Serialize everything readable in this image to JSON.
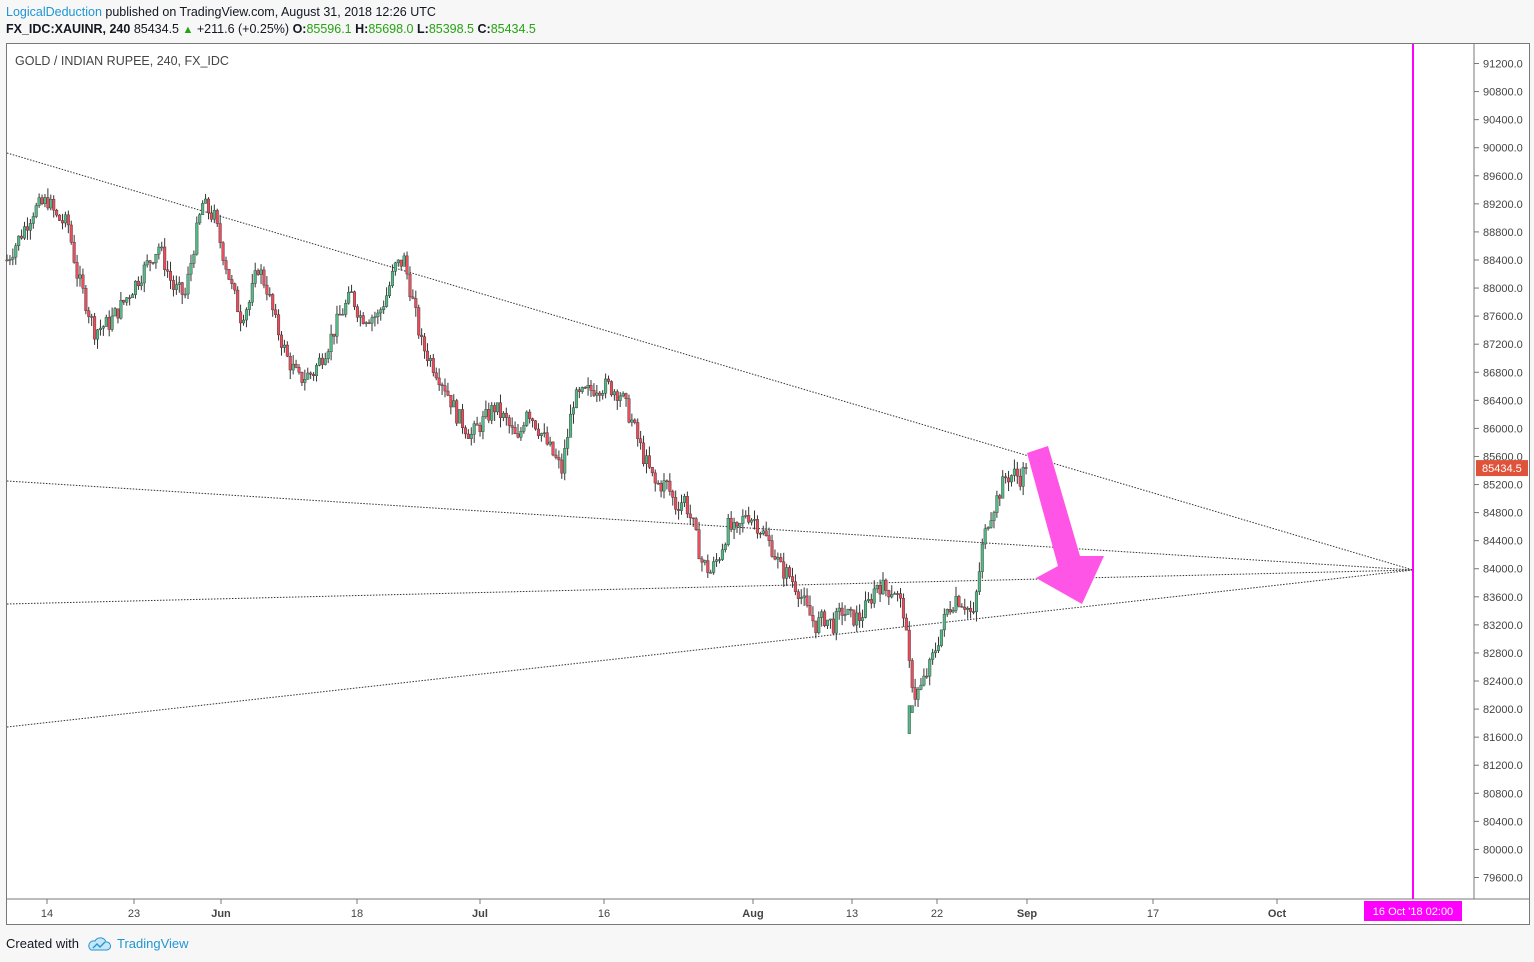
{
  "header": {
    "author": "LogicalDeduction",
    "published_text": " published on TradingView.com, August 31, 2018 12:26 UTC",
    "symbol": "FX_IDC:XAUINR, 240",
    "last": "85434.5",
    "change": "+211.6 (+0.25%)",
    "o_label": "O:",
    "o": "85596.1",
    "h_label": "H:",
    "h": "85698.0",
    "l_label": "L:",
    "l": "85398.5",
    "c_label": "C:",
    "c": "85434.5"
  },
  "footer": {
    "created_with": "Created with",
    "brand": "TradingView"
  },
  "colors": {
    "up": "#53b987",
    "down": "#eb4d5c",
    "wick": "#333333",
    "accent": "#ff00ff",
    "price_tag": "#e0533b",
    "arrow": "#ff55e6"
  },
  "chart_data": {
    "type": "candlestick",
    "title": "GOLD / INDIAN RUPEE, 240, FX_IDC",
    "ylim": [
      79200,
      91600
    ],
    "y_ticks": [
      "91200.0",
      "90800.0",
      "90400.0",
      "90000.0",
      "89600.0",
      "89200.0",
      "88800.0",
      "88400.0",
      "88000.0",
      "87600.0",
      "87200.0",
      "86800.0",
      "86400.0",
      "86000.0",
      "85600.0",
      "85200.0",
      "84800.0",
      "84400.0",
      "84000.0",
      "83600.0",
      "83200.0",
      "82800.0",
      "82400.0",
      "82000.0",
      "81600.0",
      "81200.0",
      "80800.0",
      "80400.0",
      "80000.0",
      "79600.0"
    ],
    "x_ticks": [
      "14",
      "23",
      "Jun",
      "18",
      "Jul",
      "16",
      "Aug",
      "13",
      "22",
      "Sep",
      "17",
      "Oct"
    ],
    "x_ticks_bold": [
      "Jun",
      "Jul",
      "Aug",
      "Sep",
      "Oct"
    ],
    "last_price_label": "85434.5",
    "vertical_marker_label": "16 Oct '18   02:00",
    "annotation": "downward arrow from last candle toward apex",
    "trendlines": [
      {
        "from": [
          "May 10",
          89950
        ],
        "to": [
          "Oct 16",
          84000
        ]
      },
      {
        "from": [
          "May 10",
          85250
        ],
        "to": [
          "Oct 16",
          84000
        ]
      },
      {
        "from": [
          "May 10",
          83500
        ],
        "to": [
          "Oct 16",
          84000
        ]
      },
      {
        "from": [
          "May 10",
          81750
        ],
        "to": [
          "Oct 16",
          84000
        ]
      }
    ],
    "price_path": [
      [
        0,
        88400
      ],
      [
        4,
        88700
      ],
      [
        9,
        89100
      ],
      [
        14,
        89250
      ],
      [
        17,
        89000
      ],
      [
        21,
        88900
      ],
      [
        24,
        88200
      ],
      [
        27,
        87800
      ],
      [
        30,
        87400
      ],
      [
        35,
        87500
      ],
      [
        40,
        87800
      ],
      [
        46,
        88200
      ],
      [
        52,
        88600
      ],
      [
        57,
        88000
      ],
      [
        61,
        87900
      ],
      [
        64,
        88600
      ],
      [
        67,
        89200
      ],
      [
        71,
        89000
      ],
      [
        74,
        88500
      ],
      [
        77,
        88000
      ],
      [
        80,
        87600
      ],
      [
        83,
        87800
      ],
      [
        86,
        88300
      ],
      [
        89,
        88000
      ],
      [
        92,
        87500
      ],
      [
        96,
        87000
      ],
      [
        100,
        86700
      ],
      [
        105,
        86800
      ],
      [
        110,
        87200
      ],
      [
        114,
        87600
      ],
      [
        118,
        87900
      ],
      [
        121,
        87600
      ],
      [
        124,
        87600
      ],
      [
        127,
        87600
      ],
      [
        130,
        87900
      ],
      [
        133,
        88300
      ],
      [
        136,
        88400
      ],
      [
        139,
        87800
      ],
      [
        142,
        87200
      ],
      [
        146,
        86900
      ],
      [
        150,
        86600
      ],
      [
        154,
        86200
      ],
      [
        159,
        85900
      ],
      [
        163,
        86100
      ],
      [
        167,
        86300
      ],
      [
        171,
        86100
      ],
      [
        175,
        85800
      ],
      [
        178,
        86300
      ],
      [
        182,
        86000
      ],
      [
        186,
        85700
      ],
      [
        190,
        85400
      ],
      [
        194,
        86400
      ],
      [
        198,
        86500
      ],
      [
        202,
        86600
      ],
      [
        206,
        86600
      ],
      [
        210,
        86500
      ],
      [
        214,
        86100
      ],
      [
        218,
        85600
      ],
      [
        222,
        85200
      ],
      [
        226,
        85200
      ],
      [
        229,
        84900
      ],
      [
        232,
        85000
      ],
      [
        235,
        84600
      ],
      [
        238,
        84100
      ],
      [
        241,
        83950
      ],
      [
        244,
        84200
      ],
      [
        247,
        84600
      ],
      [
        250,
        84500
      ],
      [
        253,
        84800
      ],
      [
        256,
        84700
      ],
      [
        259,
        84500
      ],
      [
        262,
        84300
      ],
      [
        265,
        84000
      ],
      [
        268,
        83900
      ],
      [
        271,
        83700
      ],
      [
        274,
        83400
      ],
      [
        277,
        83200
      ],
      [
        280,
        83300
      ],
      [
        283,
        83200
      ],
      [
        286,
        83400
      ],
      [
        289,
        83300
      ],
      [
        292,
        83300
      ],
      [
        295,
        83500
      ],
      [
        298,
        83800
      ],
      [
        301,
        83700
      ],
      [
        304,
        83700
      ],
      [
        307,
        83400
      ],
      [
        309,
        82600
      ],
      [
        311,
        82200
      ],
      [
        313,
        82300
      ],
      [
        316,
        82600
      ],
      [
        319,
        83000
      ],
      [
        322,
        83400
      ],
      [
        325,
        83600
      ],
      [
        328,
        83500
      ],
      [
        331,
        83300
      ],
      [
        334,
        84300
      ],
      [
        336,
        84700
      ],
      [
        339,
        85000
      ],
      [
        342,
        85300
      ],
      [
        345,
        85350
      ],
      [
        347,
        85300
      ],
      [
        349,
        85430
      ]
    ],
    "spikes": [
      [
        309,
        81650
      ],
      [
        310,
        81950
      ]
    ]
  }
}
